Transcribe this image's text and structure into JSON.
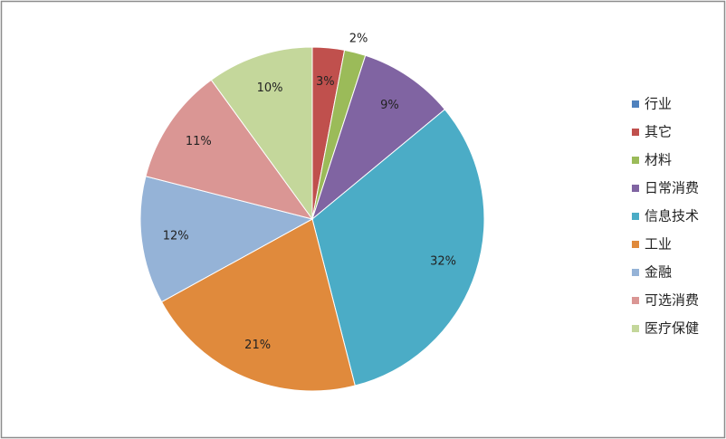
{
  "chart_data": {
    "type": "pie",
    "categories": [
      "行业",
      "其它",
      "材料",
      "日常消费",
      "信息技术",
      "工业",
      "金融",
      "可选消费",
      "医疗保健"
    ],
    "values": [
      null,
      3,
      2,
      9,
      32,
      21,
      12,
      11,
      10
    ],
    "value_labels": [
      null,
      "3%",
      "2%",
      "9%",
      "32%",
      "21%",
      "12%",
      "11%",
      "10%"
    ],
    "colors": [
      "#4f81bd",
      "#c0504d",
      "#9bbb59",
      "#8064a2",
      "#4bacc6",
      "#e08a3c",
      "#95b3d7",
      "#da9694",
      "#c4d79b"
    ],
    "legend": "right"
  }
}
